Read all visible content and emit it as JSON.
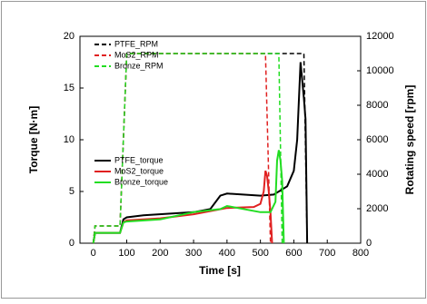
{
  "chart_data": {
    "type": "line",
    "xlabel": "Time [s]",
    "ylabel": "Torque [N·m]",
    "y2label": "Rotating speed [rpm]",
    "xlim": [
      -40,
      800
    ],
    "xticks": [
      0,
      100,
      200,
      300,
      400,
      500,
      600,
      700,
      800
    ],
    "ylim": [
      0,
      20
    ],
    "yticks": [
      0,
      5,
      10,
      15,
      20
    ],
    "y2lim": [
      0,
      12000
    ],
    "y2ticks": [
      0,
      2000,
      4000,
      6000,
      8000,
      10000,
      12000
    ],
    "series": [
      {
        "name": "PTFE_RPM",
        "color": "#000000",
        "dashed": true,
        "axis": "y2",
        "x": [
          0,
          5,
          80,
          100,
          630,
          640
        ],
        "values": [
          0,
          1000,
          1000,
          11000,
          11000,
          0
        ]
      },
      {
        "name": "MoS2_RPM",
        "color": "#e02020",
        "dashed": true,
        "axis": "y2",
        "x": [
          0,
          5,
          80,
          100,
          515,
          530
        ],
        "values": [
          0,
          1000,
          1000,
          11000,
          11000,
          0
        ]
      },
      {
        "name": "Bronze_RPM",
        "color": "#22dd22",
        "dashed": true,
        "axis": "y2",
        "x": [
          0,
          5,
          80,
          100,
          555,
          565
        ],
        "values": [
          0,
          1000,
          1000,
          11000,
          11000,
          0
        ]
      },
      {
        "name": "PTFE_torque",
        "color": "#000000",
        "dashed": false,
        "axis": "y",
        "x": [
          0,
          5,
          80,
          90,
          100,
          150,
          300,
          350,
          380,
          400,
          500,
          540,
          580,
          600,
          610,
          620,
          630,
          635,
          640
        ],
        "values": [
          0,
          1,
          1,
          2.3,
          2.5,
          2.7,
          3,
          3.3,
          4.6,
          4.8,
          4.6,
          4.7,
          5.5,
          7,
          10,
          17.5,
          14,
          12,
          0
        ]
      },
      {
        "name": "MoS2_torque",
        "color": "#e02020",
        "dashed": false,
        "axis": "y",
        "x": [
          0,
          5,
          80,
          90,
          100,
          200,
          300,
          400,
          480,
          500,
          510,
          515,
          520,
          525,
          530,
          535
        ],
        "values": [
          0,
          1,
          1,
          2,
          2.2,
          2.4,
          2.8,
          3.4,
          3.5,
          3.8,
          5,
          7,
          6.5,
          5,
          3,
          0
        ]
      },
      {
        "name": "Bronze_torque",
        "color": "#22dd22",
        "dashed": false,
        "axis": "y",
        "x": [
          0,
          5,
          80,
          90,
          100,
          200,
          300,
          380,
          400,
          500,
          530,
          545,
          550,
          555,
          560,
          565,
          570
        ],
        "values": [
          0,
          1,
          1,
          2,
          2.1,
          2.3,
          3,
          3.3,
          3.6,
          3,
          3,
          4,
          8,
          9,
          8,
          6,
          0
        ]
      }
    ]
  }
}
